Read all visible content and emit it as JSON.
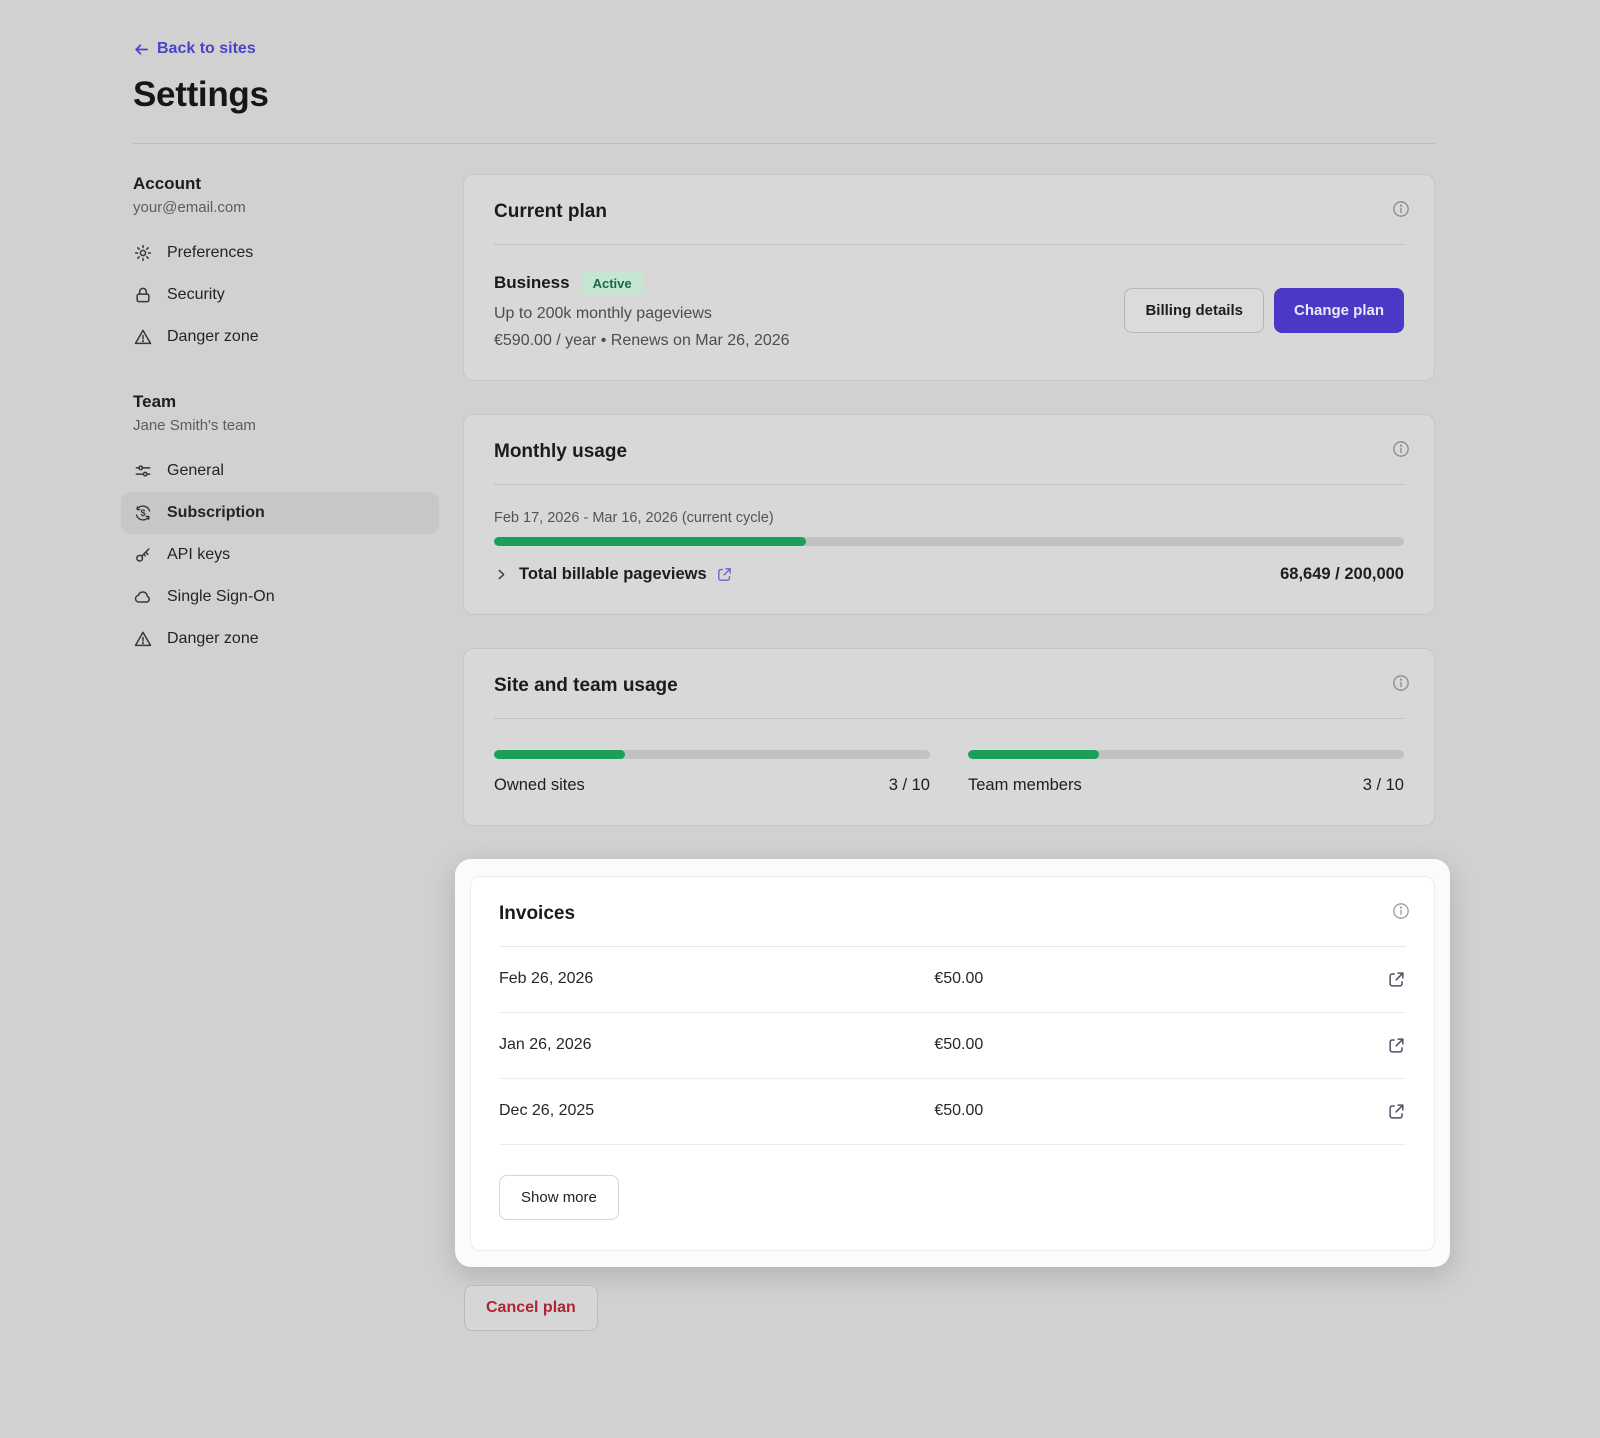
{
  "header": {
    "back_label": "Back to sites",
    "title": "Settings"
  },
  "sidebar": {
    "account": {
      "heading": "Account",
      "subtitle": "your@email.com",
      "items": [
        {
          "label": "Preferences",
          "icon": "gear-icon"
        },
        {
          "label": "Security",
          "icon": "lock-icon"
        },
        {
          "label": "Danger zone",
          "icon": "warning-triangle-icon"
        }
      ]
    },
    "team": {
      "heading": "Team",
      "subtitle": "Jane Smith's team",
      "items": [
        {
          "label": "General",
          "icon": "sliders-icon"
        },
        {
          "label": "Subscription",
          "icon": "dollar-refresh-icon",
          "active": true
        },
        {
          "label": "API keys",
          "icon": "key-icon"
        },
        {
          "label": "Single Sign-On",
          "icon": "cloud-icon"
        },
        {
          "label": "Danger zone",
          "icon": "warning-triangle-icon"
        }
      ]
    }
  },
  "current_plan": {
    "title": "Current plan",
    "plan_name": "Business",
    "badge": "Active",
    "description": "Up to 200k monthly pageviews",
    "billing_line": "€590.00 / year • Renews on Mar 26, 2026",
    "billing_details_label": "Billing details",
    "change_plan_label": "Change plan"
  },
  "monthly_usage": {
    "title": "Monthly usage",
    "cycle": "Feb 17, 2026 - Mar 16, 2026 (current cycle)",
    "progress_pct": 34.3,
    "row_label": "Total billable pageviews",
    "row_value": "68,649 / 200,000"
  },
  "site_team_usage": {
    "title": "Site and team usage",
    "metrics": [
      {
        "label": "Owned sites",
        "value": "3 / 10",
        "pct": 30
      },
      {
        "label": "Team members",
        "value": "3 / 10",
        "pct": 30
      }
    ]
  },
  "invoices": {
    "title": "Invoices",
    "rows": [
      {
        "date": "Feb 26, 2026",
        "amount": "€50.00"
      },
      {
        "date": "Jan 26, 2026",
        "amount": "€50.00"
      },
      {
        "date": "Dec 26, 2025",
        "amount": "€50.00"
      }
    ],
    "show_more_label": "Show more"
  },
  "footer": {
    "cancel_label": "Cancel plan"
  },
  "colors": {
    "accent_indigo": "#4c38c6",
    "link_indigo": "#4a43c9",
    "progress_green": "#1aa058",
    "badge_bg": "#c6e6d2",
    "badge_text": "#176b48",
    "danger_text": "#ae2433",
    "page_bg": "#d1d1d1",
    "spotlight_bg": "#ffffff"
  }
}
